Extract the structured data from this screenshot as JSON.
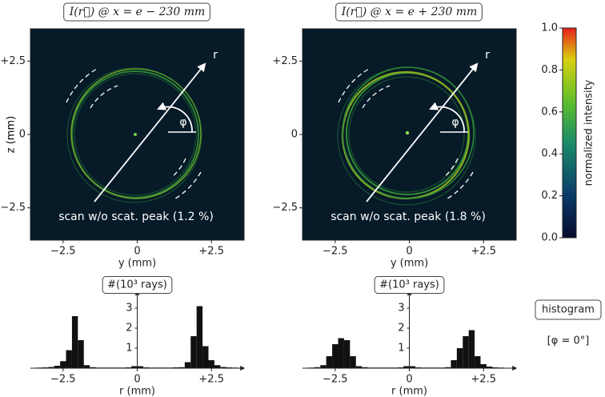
{
  "chart_data": [
    {
      "type": "image",
      "title": "I(r⃗) @ x = e − 230 mm",
      "xlabel": "y (mm)",
      "ylabel": "z (mm)",
      "xlim": [
        -3.6,
        3.6
      ],
      "ylim": [
        -3.6,
        3.6
      ],
      "xticks": [
        {
          "value": -2.5,
          "label": "−2.5"
        },
        0,
        {
          "value": 2.5,
          "label": "+2.5"
        }
      ],
      "yticks": [
        {
          "value": -2.5,
          "label": "−2.5"
        },
        0,
        {
          "value": 2.5,
          "label": "+2.5"
        }
      ],
      "annotation": "scan w/o scat. peak (1.2 %)",
      "arrow_label": "r",
      "angle_label": "φ"
    },
    {
      "type": "image",
      "title": "I(r⃗) @ x = e + 230 mm",
      "xlabel": "y (mm)",
      "ylabel": "z (mm)",
      "xlim": [
        -3.6,
        3.6
      ],
      "ylim": [
        -3.6,
        3.6
      ],
      "xticks": [
        {
          "value": -2.5,
          "label": "−2.5"
        },
        0,
        {
          "value": 2.5,
          "label": "+2.5"
        }
      ],
      "yticks": [
        {
          "value": -2.5,
          "label": "−2.5"
        },
        0,
        {
          "value": 2.5,
          "label": "+2.5"
        }
      ],
      "annotation": "scan w/o scat. peak (1.8 %)",
      "arrow_label": "r",
      "angle_label": "φ"
    },
    {
      "type": "colorbar",
      "label": "normalized intensity",
      "ylim": [
        0,
        1
      ],
      "yticks": [
        {
          "value": 0,
          "label": "0.0"
        },
        0.2,
        0.4,
        0.6,
        0.8,
        {
          "value": 1,
          "label": "1.0"
        }
      ]
    },
    {
      "type": "histogram",
      "title": "#(10³ rays)",
      "xlabel": "r (mm)",
      "color": "#111111",
      "xlim": [
        -3.6,
        3.6
      ],
      "ylim": [
        0,
        3.6
      ],
      "xticks": [
        {
          "value": -2.5,
          "label": "−2.5"
        },
        0,
        {
          "value": 2.5,
          "label": "+2.5"
        }
      ],
      "yticks": [
        1,
        2,
        3
      ],
      "bins": [
        -3.6,
        -3.4,
        -3.2,
        -3,
        -2.8,
        -2.6,
        -2.4,
        -2.2,
        -2,
        -1.8,
        -1.6,
        -1.4,
        -1.2,
        -1,
        -0.8,
        -0.6,
        -0.4,
        -0.2,
        0,
        0.2,
        0.4,
        0.6,
        0.8,
        1,
        1.2,
        1.4,
        1.6,
        1.8,
        2,
        2.2,
        2.4,
        2.6,
        2.8,
        3,
        3.2,
        3.4,
        3.6
      ],
      "values": [
        0.02,
        0.03,
        0.04,
        0.06,
        0.12,
        0.35,
        0.9,
        2.6,
        1.4,
        0.15,
        0.05,
        0.03,
        0.03,
        0.03,
        0.03,
        0.03,
        0.04,
        0.1,
        0.1,
        0.04,
        0.03,
        0.03,
        0.03,
        0.03,
        0.04,
        0.05,
        0.3,
        1.6,
        3.1,
        1.1,
        0.4,
        0.15,
        0.06,
        0.04,
        0.03,
        0.02
      ]
    },
    {
      "type": "histogram",
      "title": "#(10³ rays)",
      "xlabel": "r (mm)",
      "color": "#111111",
      "xlim": [
        -3.6,
        3.6
      ],
      "ylim": [
        0,
        3.6
      ],
      "xticks": [
        {
          "value": -2.5,
          "label": "−2.5"
        },
        0,
        {
          "value": 2.5,
          "label": "+2.5"
        }
      ],
      "yticks": [
        1,
        2,
        3
      ],
      "bins": [
        -3.6,
        -3.4,
        -3.2,
        -3,
        -2.8,
        -2.6,
        -2.4,
        -2.2,
        -2,
        -1.8,
        -1.6,
        -1.4,
        -1.2,
        -1,
        -0.8,
        -0.6,
        -0.4,
        -0.2,
        0,
        0.2,
        0.4,
        0.6,
        0.8,
        1,
        1.2,
        1.4,
        1.6,
        1.8,
        2,
        2.2,
        2.4,
        2.6,
        2.8,
        3,
        3.2,
        3.4,
        3.6
      ],
      "values": [
        0.02,
        0.03,
        0.05,
        0.15,
        0.6,
        1.2,
        1.5,
        1.4,
        0.6,
        0.1,
        0.05,
        0.03,
        0.03,
        0.03,
        0.03,
        0.03,
        0.04,
        0.1,
        0.1,
        0.04,
        0.03,
        0.03,
        0.03,
        0.03,
        0.05,
        0.4,
        1.0,
        1.6,
        1.9,
        0.6,
        0.2,
        0.08,
        0.04,
        0.03,
        0.02,
        0.02
      ]
    }
  ],
  "side_note": {
    "box": "histogram",
    "condition": "[φ = 0°]"
  }
}
